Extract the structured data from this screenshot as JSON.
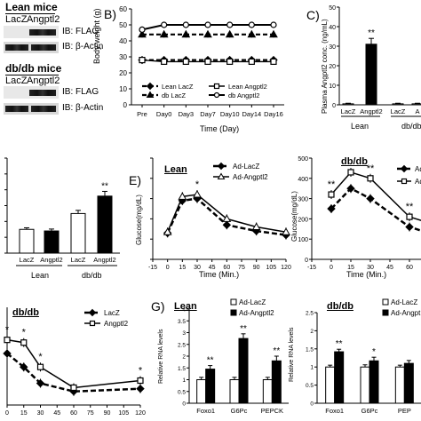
{
  "panelA": {
    "lean_title": "Lean mice",
    "lean_lanes": [
      "LacZ",
      "Angptl2"
    ],
    "dbdb_title": "db/db mice",
    "dbdb_lanes": [
      "LacZ",
      "Angptl2"
    ],
    "ib_flag": "IB: FLAG",
    "ib_actin": "IB: β-Actin"
  },
  "panelB": {
    "letter": "B)",
    "ylabel": "Body weight (g)",
    "xlabel": "Time (Day)",
    "legend": [
      "Lean LacZ",
      "Lean Angptl2",
      "db LacZ",
      "db Angptl2"
    ]
  },
  "panelC": {
    "letter": "C)",
    "ylabel": "Plasma Angptl2 conc. (ng/mL)",
    "groups": [
      "Lean",
      "db/db"
    ],
    "star": "**"
  },
  "panelD": {
    "groups": [
      "Lean",
      "db/db"
    ],
    "star": "**"
  },
  "panelE": {
    "letter": "E)",
    "lean_title": "Lean",
    "dbdb_title": "db/db",
    "ylabel": "Glucose(mg/dL)",
    "xlabel": "Time (Min.)",
    "legend": [
      "Ad-LacZ",
      "Ad-Angptl2"
    ],
    "legend_right": [
      "Ad-",
      "Ad-"
    ]
  },
  "panelF": {
    "title": "db/db",
    "legend": [
      "LacZ",
      "Angptl2"
    ]
  },
  "panelG": {
    "letter": "G)",
    "lean_title": "Lean",
    "dbdb_title": "db/db",
    "ylabel": "Relative RNA levels",
    "legend": [
      "Ad-LacZ",
      "Ad-Angptl2"
    ],
    "legend_right": [
      "Ad-LacZ",
      "Ad-Angpt"
    ],
    "star": "**",
    "single_star": "*"
  },
  "chart_data": [
    {
      "id": "B",
      "type": "line",
      "title": "",
      "xlabel": "Time (Day)",
      "ylabel": "Body weight (g)",
      "categories": [
        "Pre",
        "Day0",
        "Day3",
        "Day7",
        "Day10",
        "Day14",
        "Day16"
      ],
      "ylim": [
        0,
        60
      ],
      "yticks": [
        0,
        10,
        20,
        30,
        40,
        50,
        60
      ],
      "series": [
        {
          "name": "Lean LacZ",
          "values": [
            28,
            28,
            28,
            28,
            28,
            28,
            28
          ]
        },
        {
          "name": "Lean Angptl2",
          "values": [
            28,
            27,
            27,
            27,
            27,
            27,
            27
          ]
        },
        {
          "name": "db LacZ",
          "values": [
            44,
            44,
            44,
            44,
            44,
            44,
            44
          ]
        },
        {
          "name": "db Angptl2",
          "values": [
            47,
            50,
            50,
            50,
            50,
            50,
            50
          ]
        }
      ]
    },
    {
      "id": "C",
      "type": "bar",
      "ylabel": "Plasma Angptl2 conc. (ng/mL)",
      "categories": [
        "LacZ",
        "Angptl2",
        "LacZ",
        "A"
      ],
      "groups": [
        "Lean",
        "db/db"
      ],
      "ylim": [
        0,
        50
      ],
      "yticks": [
        0,
        10,
        20,
        30,
        40,
        50
      ],
      "values": [
        0.5,
        31,
        0.5,
        0.5
      ],
      "errors": [
        0.3,
        3,
        0.3,
        0.3
      ],
      "colors": [
        "#ffffff",
        "#000000",
        "#ffffff",
        "#ffffff"
      ],
      "annotations": [
        "",
        "**",
        "",
        ""
      ]
    },
    {
      "id": "D",
      "type": "bar",
      "categories": [
        "LacZ",
        "Angptl2",
        "LacZ",
        "Angptl2"
      ],
      "groups": [
        "Lean",
        "db/db"
      ],
      "ylim": [
        0,
        6
      ],
      "values": [
        1.5,
        1.4,
        2.5,
        3.6
      ],
      "errors": [
        0.1,
        0.12,
        0.2,
        0.3
      ],
      "colors": [
        "#ffffff",
        "#000000",
        "#ffffff",
        "#000000"
      ],
      "annotations": [
        "",
        "",
        "",
        "**"
      ]
    },
    {
      "id": "E-lean",
      "type": "line",
      "title": "Lean",
      "xlabel": "Time (Min.)",
      "ylabel": "Glucose(mg/dL)",
      "x": [
        0,
        15,
        30,
        45,
        60,
        75,
        90,
        105,
        120
      ],
      "xticks": [
        -15,
        0,
        15,
        30,
        45,
        60,
        75,
        90,
        105,
        120
      ],
      "ylim": [
        0,
        500
      ],
      "yticks": [
        0,
        100,
        200,
        300,
        400,
        500
      ],
      "series": [
        {
          "name": "Ad-LacZ",
          "x": [
            0,
            15,
            30,
            60,
            90,
            120
          ],
          "values": [
            130,
            290,
            300,
            170,
            140,
            120
          ]
        },
        {
          "name": "Ad-Angptl2",
          "x": [
            0,
            15,
            30,
            60,
            90,
            120
          ],
          "values": [
            135,
            310,
            320,
            200,
            160,
            135
          ]
        }
      ],
      "annotations": [
        {
          "x": 30,
          "text": "*"
        }
      ]
    },
    {
      "id": "E-dbdb",
      "type": "line",
      "title": "db/db",
      "xlabel": "Time (Min.)",
      "ylabel": "Glucose(mg/dL)",
      "xticks": [
        -15,
        0,
        15,
        30,
        45,
        60,
        75
      ],
      "ylim": [
        0,
        500
      ],
      "yticks": [
        0,
        100,
        200,
        300,
        400,
        500
      ],
      "series": [
        {
          "name": "Ad-LacZ",
          "x": [
            0,
            15,
            30,
            60,
            80
          ],
          "values": [
            250,
            350,
            300,
            160,
            120
          ]
        },
        {
          "name": "Ad-Angptl2",
          "x": [
            0,
            15,
            30,
            60,
            80
          ],
          "values": [
            320,
            430,
            400,
            210,
            170
          ]
        }
      ],
      "annotations": [
        {
          "x": 0,
          "text": "**"
        },
        {
          "x": 30,
          "text": "**"
        },
        {
          "x": 60,
          "text": "**"
        }
      ]
    },
    {
      "id": "F",
      "type": "line",
      "title": "db/db",
      "xlabel": "",
      "x": [
        0,
        15,
        30,
        60,
        90,
        120
      ],
      "xticks": [
        0,
        15,
        30,
        45,
        60,
        75,
        90,
        105,
        120
      ],
      "ylim": [
        0,
        180
      ],
      "series": [
        {
          "name": "LacZ",
          "x": [
            0,
            15,
            30,
            60,
            120
          ],
          "values": [
            95,
            70,
            40,
            25,
            30
          ]
        },
        {
          "name": "Angptl2",
          "x": [
            0,
            15,
            30,
            60,
            120
          ],
          "values": [
            120,
            115,
            70,
            32,
            45
          ]
        }
      ],
      "annotations": [
        {
          "x": 0,
          "text": "*"
        },
        {
          "x": 15,
          "text": "*"
        },
        {
          "x": 30,
          "text": "*"
        },
        {
          "x": 120,
          "text": "*"
        }
      ]
    },
    {
      "id": "G-lean",
      "type": "bar",
      "title": "Lean",
      "ylabel": "Relative RNA levels",
      "categories": [
        "Foxo1",
        "G6Pc",
        "PEPCK"
      ],
      "ylim": [
        0,
        4
      ],
      "yticks": [
        0,
        0.5,
        1,
        1.5,
        2,
        2.5,
        3,
        3.5,
        4
      ],
      "series": [
        {
          "name": "Ad-LacZ",
          "values": [
            1,
            1,
            1
          ],
          "errors": [
            0.1,
            0.1,
            0.1
          ]
        },
        {
          "name": "Ad-Angptl2",
          "values": [
            1.45,
            2.75,
            1.8
          ],
          "errors": [
            0.15,
            0.2,
            0.2
          ]
        }
      ],
      "annotations": [
        "**",
        "**",
        "**"
      ]
    },
    {
      "id": "G-dbdb",
      "type": "bar",
      "title": "db/db",
      "ylabel": "Relative RNA levels",
      "categories": [
        "Foxo1",
        "G6Pc",
        "PEP"
      ],
      "ylim": [
        0,
        2.5
      ],
      "yticks": [
        0,
        0.5,
        1,
        1.5,
        2,
        2.5
      ],
      "series": [
        {
          "name": "Ad-LacZ",
          "values": [
            1,
            1,
            1
          ],
          "errors": [
            0.05,
            0.06,
            0.05
          ]
        },
        {
          "name": "Ad-Angptl2",
          "values": [
            1.42,
            1.17,
            1.1
          ],
          "errors": [
            0.07,
            0.1,
            0.08
          ]
        }
      ],
      "annotations": [
        "**",
        "*",
        ""
      ]
    }
  ]
}
